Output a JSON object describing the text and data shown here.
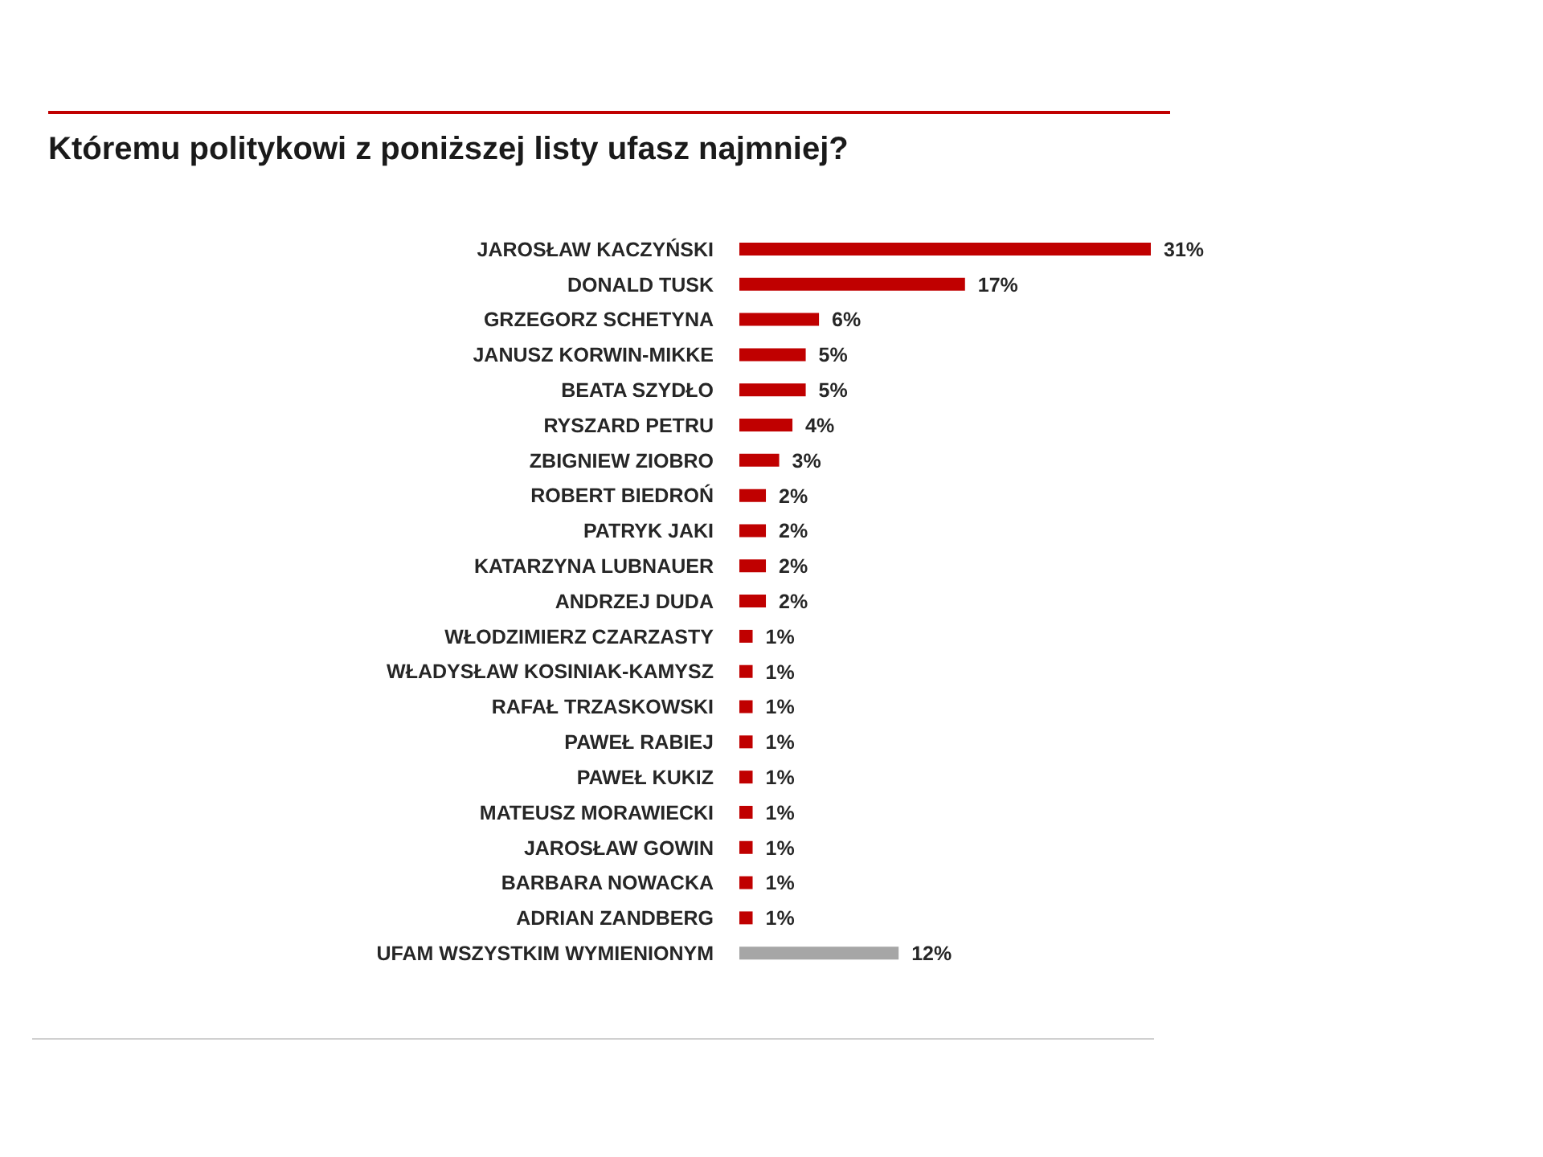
{
  "chart_data": {
    "type": "bar",
    "orientation": "horizontal",
    "title": "Któremu politykowi z poniższej listy ufasz najmniej?",
    "categories": [
      "JAROSŁAW KACZYŃSKI",
      "DONALD TUSK",
      "GRZEGORZ SCHETYNA",
      "JANUSZ KORWIN-MIKKE",
      "BEATA SZYDŁO",
      "RYSZARD PETRU",
      "ZBIGNIEW ZIOBRO",
      "ROBERT BIEDROŃ",
      "PATRYK JAKI",
      "KATARZYNA LUBNAUER",
      "ANDRZEJ DUDA",
      "WŁODZIMIERZ CZARZASTY",
      "WŁADYSŁAW KOSINIAK-KAMYSZ",
      "RAFAŁ TRZASKOWSKI",
      "PAWEŁ RABIEJ",
      "PAWEŁ KUKIZ",
      "MATEUSZ MORAWIECKI",
      "JAROSŁAW GOWIN",
      "BARBARA NOWACKA",
      "ADRIAN ZANDBERG",
      "UFAM WSZYSTKIM WYMIENIONYM"
    ],
    "values": [
      31,
      17,
      6,
      5,
      5,
      4,
      3,
      2,
      2,
      2,
      2,
      1,
      1,
      1,
      1,
      1,
      1,
      1,
      1,
      1,
      12
    ],
    "value_labels": [
      "31%",
      "17%",
      "6%",
      "5%",
      "5%",
      "4%",
      "3%",
      "2%",
      "2%",
      "2%",
      "2%",
      "1%",
      "1%",
      "1%",
      "1%",
      "1%",
      "1%",
      "1%",
      "1%",
      "1%",
      "12%"
    ],
    "colors": [
      "#c00000",
      "#c00000",
      "#c00000",
      "#c00000",
      "#c00000",
      "#c00000",
      "#c00000",
      "#c00000",
      "#c00000",
      "#c00000",
      "#c00000",
      "#c00000",
      "#c00000",
      "#c00000",
      "#c00000",
      "#c00000",
      "#c00000",
      "#c00000",
      "#c00000",
      "#c00000",
      "#a6a6a6"
    ],
    "grid": false,
    "legend": false
  }
}
